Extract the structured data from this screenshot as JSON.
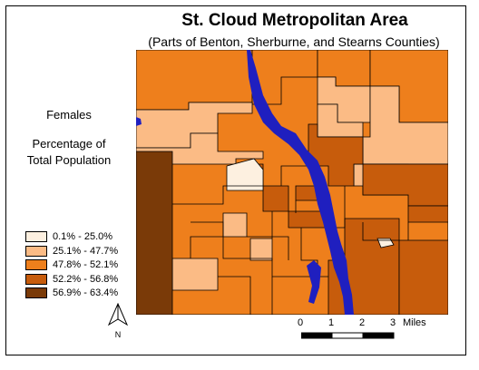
{
  "title": "St. Cloud Metropolitan Area",
  "subtitle": "(Parts of Benton, Sherburne, and Stearns Counties)",
  "variable_label": "Females",
  "measure_label_line1": "Percentage of",
  "measure_label_line2": "Total Population",
  "legend": [
    {
      "label": "0.1% - 25.0%",
      "color": "#fdf0e0"
    },
    {
      "label": "25.1% - 47.7%",
      "color": "#fbbb85"
    },
    {
      "label": "47.8% - 52.1%",
      "color": "#ee7f1c"
    },
    {
      "label": "52.2% - 56.8%",
      "color": "#c75c0c"
    },
    {
      "label": "56.9% - 63.4%",
      "color": "#7a3a08"
    }
  ],
  "river_color": "#1f1fbf",
  "north_arrow": {
    "label": "N",
    "icon": "north-arrow-icon"
  },
  "scale_bar": {
    "ticks": [
      "0",
      "1",
      "2",
      "3"
    ],
    "unit": "Miles"
  }
}
